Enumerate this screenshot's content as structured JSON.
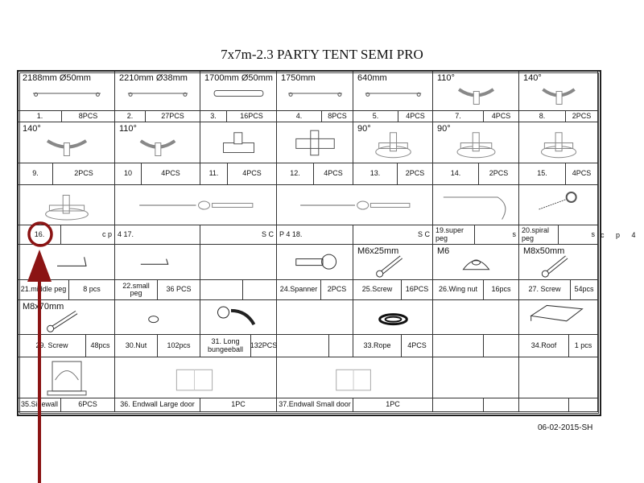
{
  "title": "7x7m-2.3 PARTY TENT SEMI PRO",
  "footer_code": "06-02-2015-SH",
  "stray_text": "c p 4",
  "annotation": {
    "color": "#8b1414",
    "shape": "circle-and-arrow",
    "target": "16."
  },
  "image_rows": [
    [
      {
        "header": "2188mm Ø50mm",
        "icon": "pole-icon"
      },
      {
        "header": "2210mm Ø38mm",
        "icon": "pole-icon"
      },
      {
        "header": "1700mm Ø50mm",
        "icon": "tube-icon"
      },
      {
        "header": "1750mm",
        "icon": "pole-icon"
      },
      {
        "header": "640mm",
        "icon": "pole-icon"
      },
      {
        "header": "110°",
        "icon": "connector-icon"
      },
      {
        "header": "140°",
        "icon": "connector-icon"
      }
    ],
    [
      {
        "header": "140°",
        "icon": "connector-icon"
      },
      {
        "header": "110°",
        "icon": "connector-icon"
      },
      {
        "header": "",
        "icon": "t-joint-icon"
      },
      {
        "header": "",
        "icon": "cross-joint-icon"
      },
      {
        "header": "90°",
        "icon": "foot-plate-icon"
      },
      {
        "header": "90°",
        "icon": "foot-plate-icon"
      },
      {
        "header": "",
        "icon": "foot-plate-icon"
      }
    ],
    [
      {
        "header": "",
        "icon": "foot-plate-icon"
      },
      {
        "header": "",
        "icon": "tension-cable-icon"
      },
      {
        "header": "",
        "icon": "tension-cable-icon"
      },
      {
        "header": "",
        "icon": "super-peg-icon"
      },
      {
        "header": "",
        "icon": "spiral-peg-icon"
      }
    ],
    [
      {
        "header": "",
        "icon": "middle-peg-icon"
      },
      {
        "header": "",
        "icon": "small-peg-icon"
      },
      {
        "header": "",
        "icon": ""
      },
      {
        "header": "",
        "icon": "spanner-icon"
      },
      {
        "header": "M6x25mm",
        "icon": "screw-icon"
      },
      {
        "header": "M6",
        "icon": "wing-nut-icon"
      },
      {
        "header": "M8x50mm",
        "icon": "screw-icon"
      }
    ],
    [
      {
        "header": "M8x70mm",
        "icon": "screw-icon"
      },
      {
        "header": "",
        "icon": "nut-icon"
      },
      {
        "header": "",
        "icon": "bungee-ball-icon"
      },
      {
        "header": "",
        "icon": ""
      },
      {
        "header": "",
        "icon": "rope-icon"
      },
      {
        "header": "",
        "icon": ""
      },
      {
        "header": "",
        "icon": "roof-icon"
      }
    ],
    [
      {
        "header": "",
        "icon": "sidewall-icon"
      },
      {
        "header": "",
        "icon": "endwall-icon"
      },
      {
        "header": "",
        "icon": "endwall-icon"
      },
      {
        "header": "",
        "icon": ""
      },
      {
        "header": "",
        "icon": ""
      }
    ]
  ],
  "label_rows": [
    [
      "1.",
      "8PCS",
      "2.",
      "27PCS",
      "3.",
      "16PCS",
      "4.",
      "8PCS",
      "5.",
      "4PCS",
      "7.",
      "4PCS",
      "8.",
      "2PCS"
    ],
    [
      "9.",
      "2PCS",
      "10",
      "4PCS",
      "11.",
      "4PCS",
      "12.",
      "4PCS",
      "13.",
      "2PCS",
      "14.",
      "2PCS",
      "15.",
      "4PCS"
    ],
    [
      "16.",
      "c p",
      "4 17.",
      "S C",
      "P 4 18.",
      "S C",
      "19.super peg",
      "s",
      "20.spiral peg",
      "s"
    ],
    [
      "21.middle peg",
      "8 pcs",
      "22.small peg",
      "36 PCS",
      "",
      "",
      "24.Spanner",
      "2PCS",
      "25.Screw",
      "16PCS",
      "26.Wing nut",
      "16pcs",
      "27. Screw",
      "54pcs"
    ],
    [
      "29. Screw",
      "48pcs",
      "30.Nut",
      "102pcs",
      "31. Long bungeeball",
      "132PCS",
      "",
      "",
      "33.Rope",
      "4PCS",
      "",
      "",
      "34.Roof",
      "1 pcs"
    ],
    [
      "35.Sidewall",
      "6PCS",
      "36. Endwall  Large door",
      "1PC",
      "37.Endwall Small door",
      "1PC",
      "",
      "",
      "",
      ""
    ]
  ]
}
